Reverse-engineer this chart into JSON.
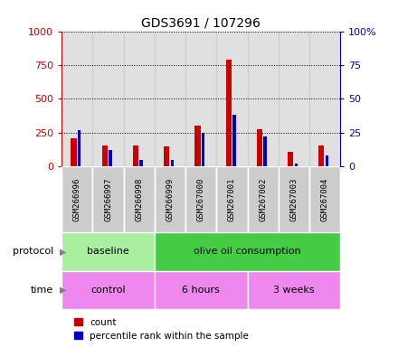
{
  "title": "GDS3691 / 107296",
  "samples": [
    "GSM266996",
    "GSM266997",
    "GSM266998",
    "GSM266999",
    "GSM267000",
    "GSM267001",
    "GSM267002",
    "GSM267003",
    "GSM267004"
  ],
  "count_values": [
    210,
    155,
    155,
    150,
    300,
    790,
    275,
    110,
    155
  ],
  "percentile_values": [
    27,
    12,
    5,
    5,
    25,
    38,
    22,
    2,
    8
  ],
  "left_ylim": [
    0,
    1000
  ],
  "right_ylim": [
    0,
    100
  ],
  "left_yticks": [
    0,
    250,
    500,
    750,
    1000
  ],
  "right_yticks": [
    0,
    25,
    50,
    75,
    100
  ],
  "left_yticklabels": [
    "0",
    "250",
    "500",
    "750",
    "1000"
  ],
  "right_yticklabels": [
    "0",
    "25",
    "50",
    "75",
    "100%"
  ],
  "protocol_groups": [
    {
      "label": "baseline",
      "start": 0,
      "end": 3,
      "color": "#aaeea0"
    },
    {
      "label": "olive oil consumption",
      "start": 3,
      "end": 9,
      "color": "#44cc44"
    }
  ],
  "time_groups": [
    {
      "label": "control",
      "start": 0,
      "end": 3
    },
    {
      "label": "6 hours",
      "start": 3,
      "end": 6
    },
    {
      "label": "3 weeks",
      "start": 6,
      "end": 9
    }
  ],
  "time_color": "#ee88ee",
  "count_color": "#cc0000",
  "percentile_color": "#0000cc",
  "bar_bg_color": "#cccccc",
  "legend_count_label": "count",
  "legend_percentile_label": "percentile rank within the sample",
  "protocol_label": "protocol",
  "time_label": "time",
  "left_axis_color": "#cc0000",
  "right_axis_color": "#0000cc"
}
